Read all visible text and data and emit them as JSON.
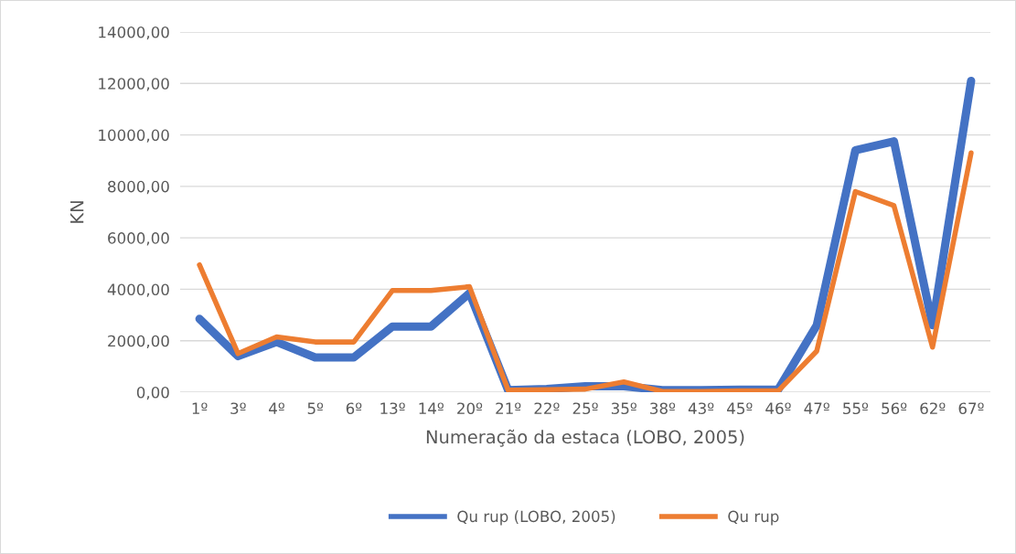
{
  "chart_data": {
    "type": "line",
    "xlabel": "Numeração da estaca (LOBO, 2005)",
    "ylabel": "KN",
    "categories": [
      "1º",
      "3º",
      "4º",
      "5º",
      "6º",
      "13º",
      "14º",
      "20º",
      "21º",
      "22º",
      "25º",
      "35º",
      "38º",
      "43º",
      "45º",
      "46º",
      "47º",
      "55º",
      "56º",
      "62º",
      "67º"
    ],
    "series": [
      {
        "name": "Qu rup (LOBO, 2005)",
        "color": "#4472c4",
        "values": [
          2850,
          1400,
          1950,
          1350,
          1350,
          2550,
          2550,
          3850,
          80,
          120,
          230,
          230,
          80,
          80,
          100,
          100,
          2600,
          9400,
          9750,
          2600,
          12100
        ]
      },
      {
        "name": "Qu rup",
        "color": "#ed7d31",
        "values": [
          4950,
          1500,
          2150,
          1950,
          1950,
          3950,
          3950,
          4100,
          80,
          100,
          120,
          400,
          30,
          30,
          50,
          50,
          1600,
          7800,
          7250,
          1750,
          9300
        ]
      }
    ],
    "ylim": [
      0,
      14000
    ],
    "yticks": [
      {
        "value": 0,
        "label": "0,00"
      },
      {
        "value": 2000,
        "label": "2000,00"
      },
      {
        "value": 4000,
        "label": "4000,00"
      },
      {
        "value": 6000,
        "label": "6000,00"
      },
      {
        "value": 8000,
        "label": "8000,00"
      },
      {
        "value": 10000,
        "label": "10000,00"
      },
      {
        "value": 12000,
        "label": "12000,00"
      },
      {
        "value": 14000,
        "label": "14000,00"
      }
    ],
    "grid": "y",
    "legend": "bottom",
    "marker": "none",
    "line_style": "solid"
  }
}
